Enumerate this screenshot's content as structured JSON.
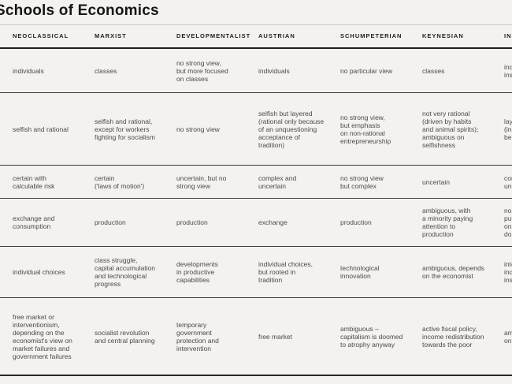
{
  "title": "Schools of Economics",
  "colors": {
    "background": "#f4f2ef",
    "title_text": "#161616",
    "body_text": "#4a4a4a",
    "header_rule": "#1f1f1f",
    "row_rule": "#3c3c3c",
    "top_rule": "#c9c7c3"
  },
  "table": {
    "columns": [
      "NEOCLASSICAL",
      "MARXIST",
      "DEVELOPMENTALIST",
      "AUSTRIAN",
      "SCHUMPETERIAN",
      "KEYNESIAN",
      "INSTITUTIONALIST"
    ],
    "rows": [
      {
        "cells": [
          "individuals",
          "classes",
          "no strong view,\nbut more focused\non classes",
          "individuals",
          "no particular view",
          "classes",
          "individuals and\ninstitutions"
        ]
      },
      {
        "cells": [
          "selfish and rational",
          "selfish and rational,\nexcept for workers\nfighting for socialism",
          "no strong view",
          "selfish but layered\n(rational only because\nof an unquestioning\nacceptance of\ntradition)",
          "no strong view,\nbut emphasis\non non-rational\nentrepreneurship",
          "not very rational\n(driven by habits\nand animal spirits);\nambiguous on\nselfishness",
          "layered\n(instinct–habit–\nbelief–reason)"
        ]
      },
      {
        "cells": [
          "certain with\ncalculable risk",
          "certain\n('laws of motion')",
          "uncertain, but no\nstrong view",
          "complex and\nuncertain",
          "no strong view\nbut complex",
          "uncertain",
          "complex and\nuncertain"
        ]
      },
      {
        "cells": [
          "exchange and\nconsumption",
          "production",
          "production",
          "exchange",
          "production",
          "ambiguous, with\na minority paying\nattention to\nproduction",
          "no strong view,\nput more emphasis\non production than\ndo Neoclassicals"
        ]
      },
      {
        "cells": [
          "individual choices",
          "class struggle,\ncapital accumulation\nand technological\nprogress",
          "developments\nin productive\ncapabilities",
          "individual choices,\nbut rooted in\ntradition",
          "technological\ninnovation",
          "ambiguous, depends\non the economist",
          "interaction between\nindividuals and\ninstitutions"
        ]
      },
      {
        "cells": [
          "free market or\ninterventionism,\ndepending on the\neconomist's view on\nmarket failures and\ngovernment failures",
          "socialist revolution\nand central planning",
          "temporary\ngovernment\nprotection and\nintervention",
          "free market",
          "ambiguous –\ncapitalism is doomed\nto atrophy anyway",
          "active fiscal policy,\nincome redistribution\ntowards the poor",
          "ambiguous, depends\non the economist"
        ]
      }
    ]
  }
}
